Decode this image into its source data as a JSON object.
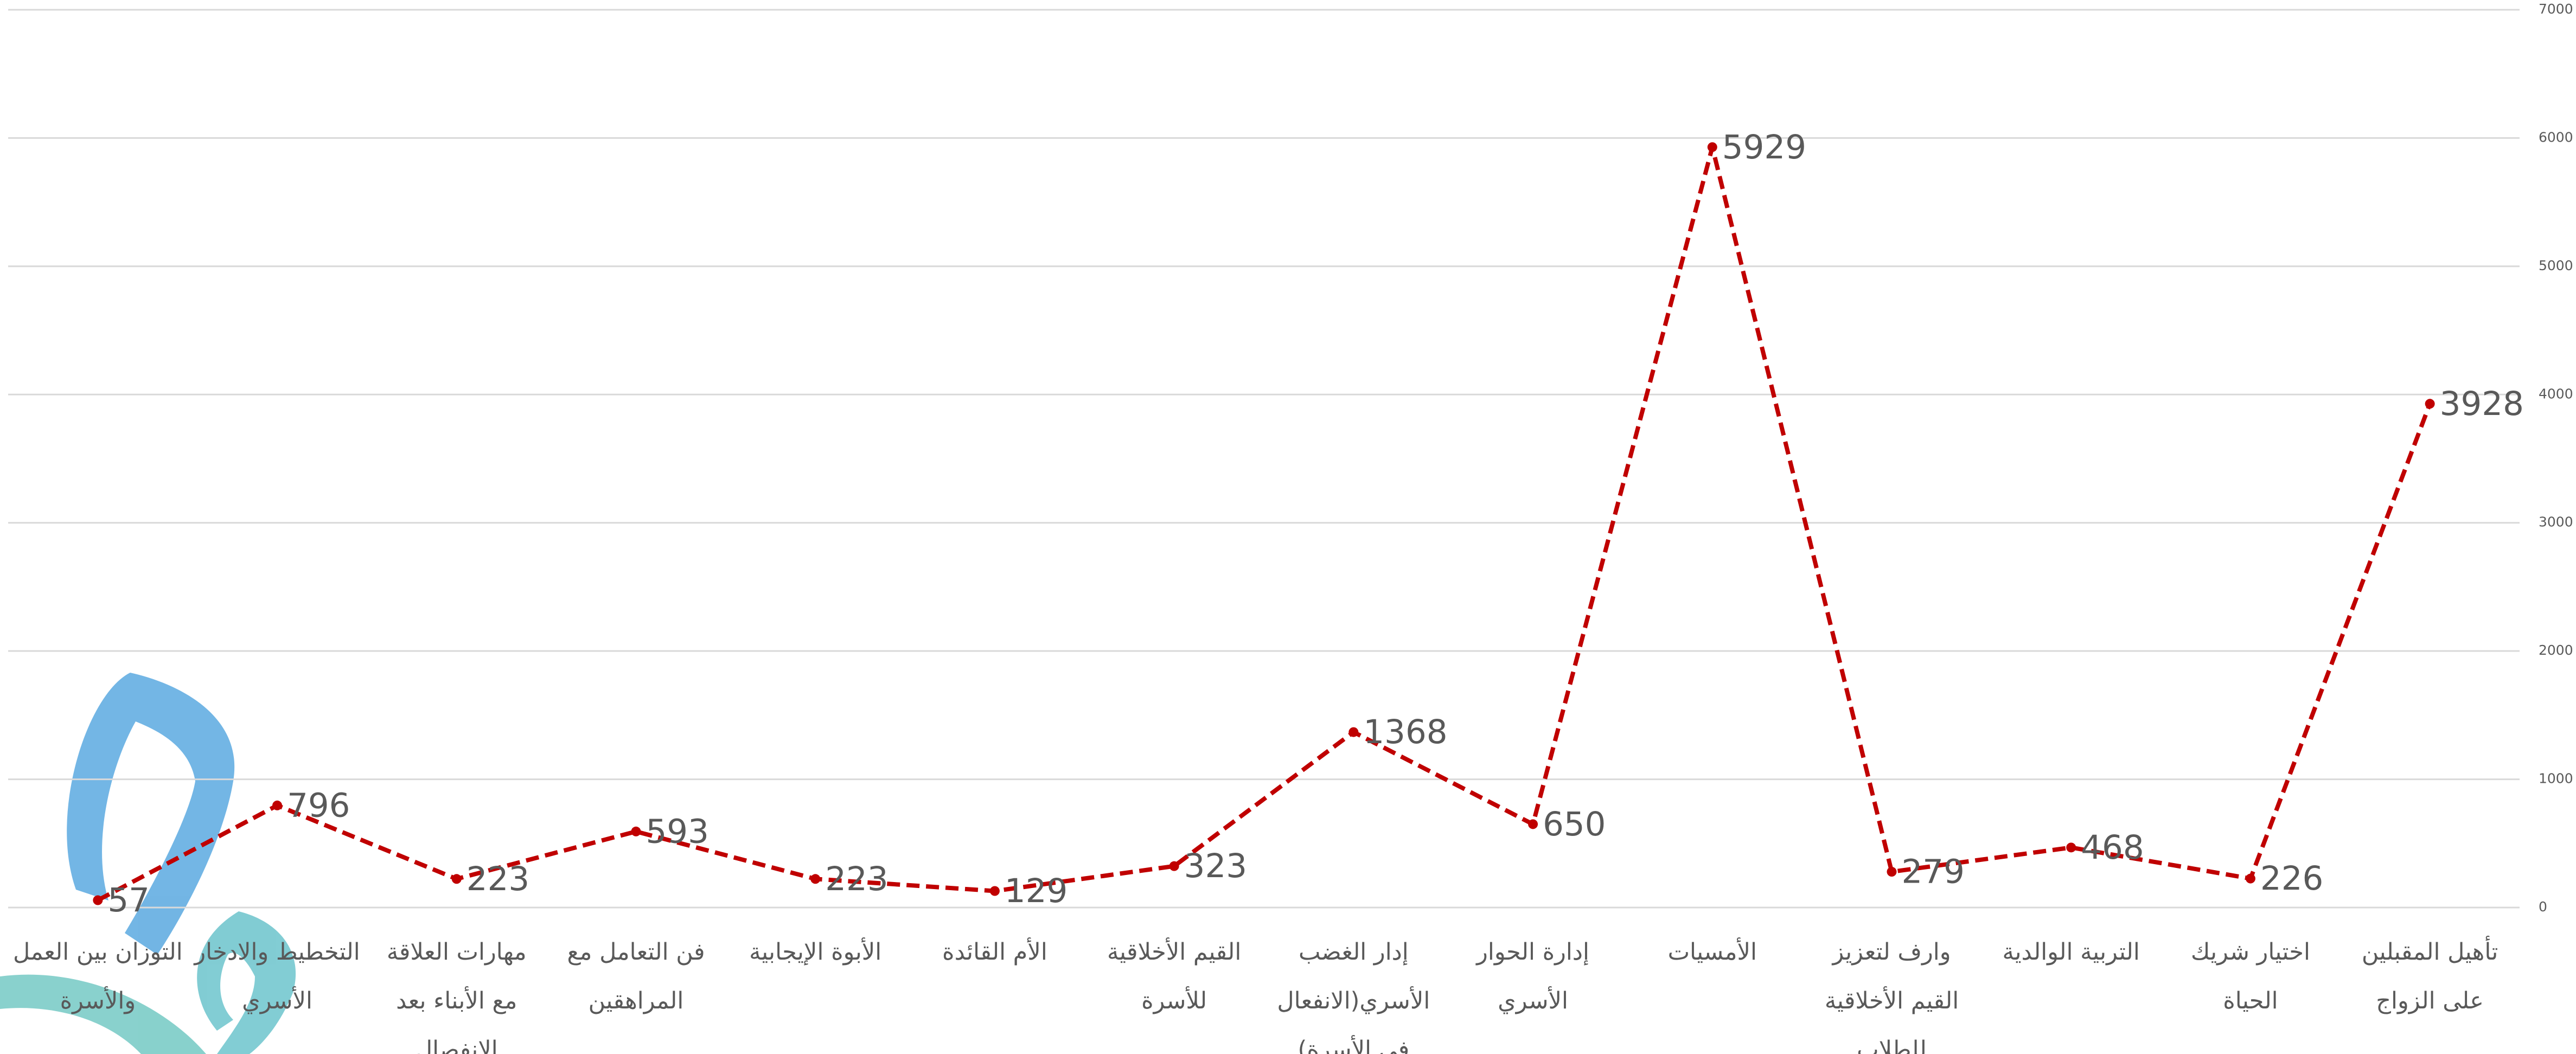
{
  "chart_data": {
    "type": "line",
    "categories": [
      "التوزان بين العمل والأسرة",
      "التخطيط والادخار الأسري",
      "مهارات العلاقة مع الأبناء بعد الانفصال",
      "فن التعامل مع المراهقين",
      "الأبوة الإيجابية",
      "الأم القائدة",
      "القيم الأخلاقية للأسرة",
      "إدار الغضب الأسري(الانفعال في الأسرة)",
      "إدارة الحوار الأسري",
      "الأمسيات",
      "وارف لتعزيز القيم الأخلاقية للطلاب",
      "التربية الوالدية",
      "اختيار شريك الحياة",
      "تأهيل المقبلين على الزواج"
    ],
    "series": [
      {
        "color": "#c00000",
        "values": [
          57,
          796,
          223,
          593,
          223,
          129,
          323,
          1368,
          650,
          5929,
          279,
          468,
          226,
          3928
        ]
      }
    ],
    "ylim": [
      0,
      7000
    ],
    "yticks": [
      0,
      1000,
      2000,
      3000,
      4000,
      5000,
      6000,
      7000
    ],
    "grid": true,
    "y_axis_side": "right"
  }
}
